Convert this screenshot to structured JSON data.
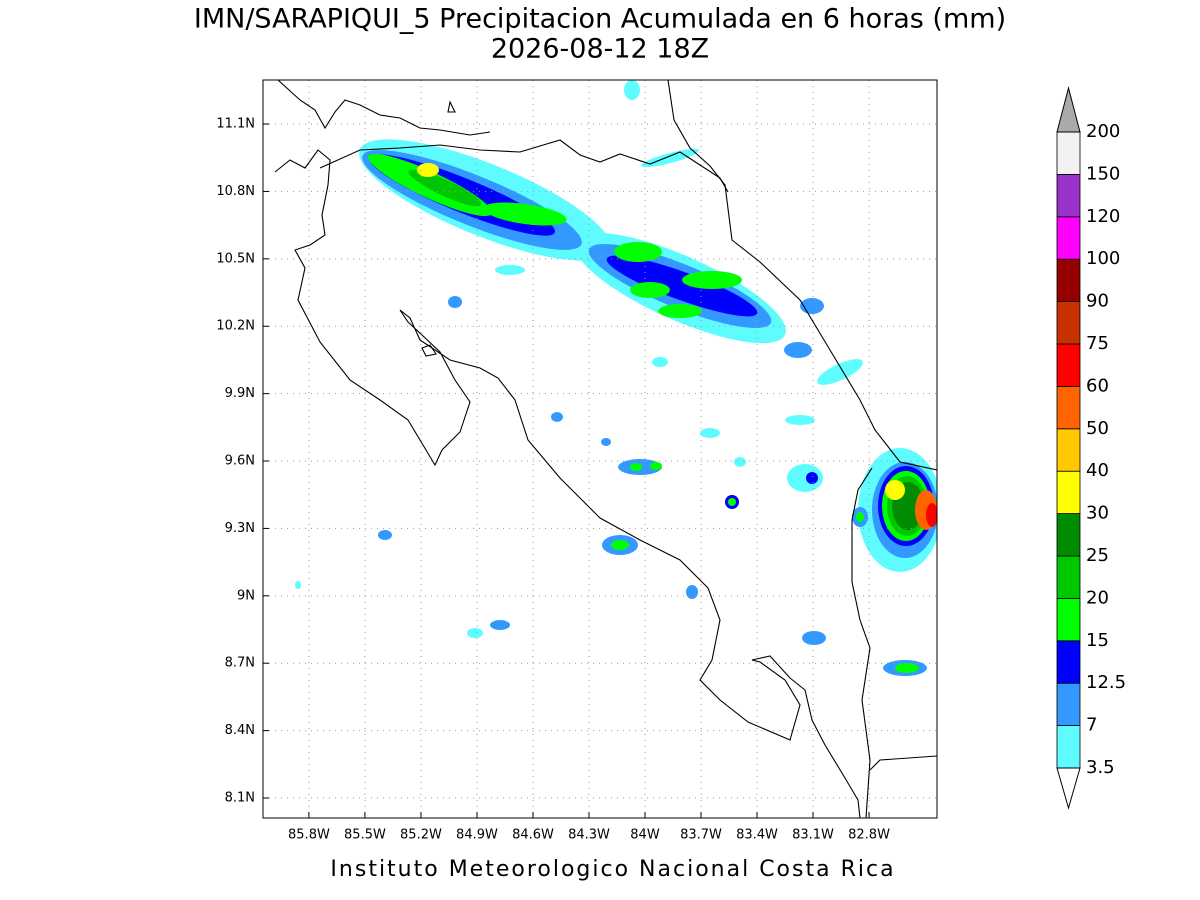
{
  "title": [
    "IMN/SARAPIQUI_5 Precipitacion Acumulada en 6 horas (mm)",
    "2026-08-12 18Z"
  ],
  "footer": "Instituto Meteorologico Nacional Costa Rica",
  "map": {
    "xlim": [
      -86.046,
      -82.436
    ],
    "ylim": [
      8.011,
      11.296
    ],
    "xticks": [
      {
        "value": -85.8,
        "label": "85.8W"
      },
      {
        "value": -85.5,
        "label": "85.5W"
      },
      {
        "value": -85.2,
        "label": "85.2W"
      },
      {
        "value": -84.9,
        "label": "84.9W"
      },
      {
        "value": -84.6,
        "label": "84.6W"
      },
      {
        "value": -84.3,
        "label": "84.3W"
      },
      {
        "value": -84,
        "label": "84W"
      },
      {
        "value": -83.7,
        "label": "83.7W"
      },
      {
        "value": -83.4,
        "label": "83.4W"
      },
      {
        "value": -83.1,
        "label": "83.1W"
      },
      {
        "value": -82.8,
        "label": "82.8W"
      }
    ],
    "yticks": [
      {
        "value": 8.1,
        "label": "8.1N"
      },
      {
        "value": 8.4,
        "label": "8.4N"
      },
      {
        "value": 8.7,
        "label": "8.7N"
      },
      {
        "value": 9,
        "label": "9N"
      },
      {
        "value": 9.3,
        "label": "9.3N"
      },
      {
        "value": 9.6,
        "label": "9.6N"
      },
      {
        "value": 9.9,
        "label": "9.9N"
      },
      {
        "value": 10.2,
        "label": "10.2N"
      },
      {
        "value": 10.5,
        "label": "10.5N"
      },
      {
        "value": 10.8,
        "label": "10.8N"
      },
      {
        "value": 11.1,
        "label": "11.1N"
      }
    ],
    "grid": true
  },
  "colorbar": {
    "levels": [
      3.5,
      7,
      12.5,
      15,
      20,
      25,
      30,
      40,
      50,
      60,
      75,
      90,
      100,
      120,
      150,
      200
    ],
    "colors": [
      "#5ffcff",
      "#3399ff",
      "#0000ff",
      "#00ff00",
      "#00c800",
      "#008c00",
      "#ffff00",
      "#ffc800",
      "#ff6400",
      "#ff0000",
      "#c83200",
      "#960000",
      "#ff00ff",
      "#9933cc",
      "#f2f2f2"
    ],
    "under_color": "#ffffff",
    "over_color": "#aaaaaa"
  }
}
